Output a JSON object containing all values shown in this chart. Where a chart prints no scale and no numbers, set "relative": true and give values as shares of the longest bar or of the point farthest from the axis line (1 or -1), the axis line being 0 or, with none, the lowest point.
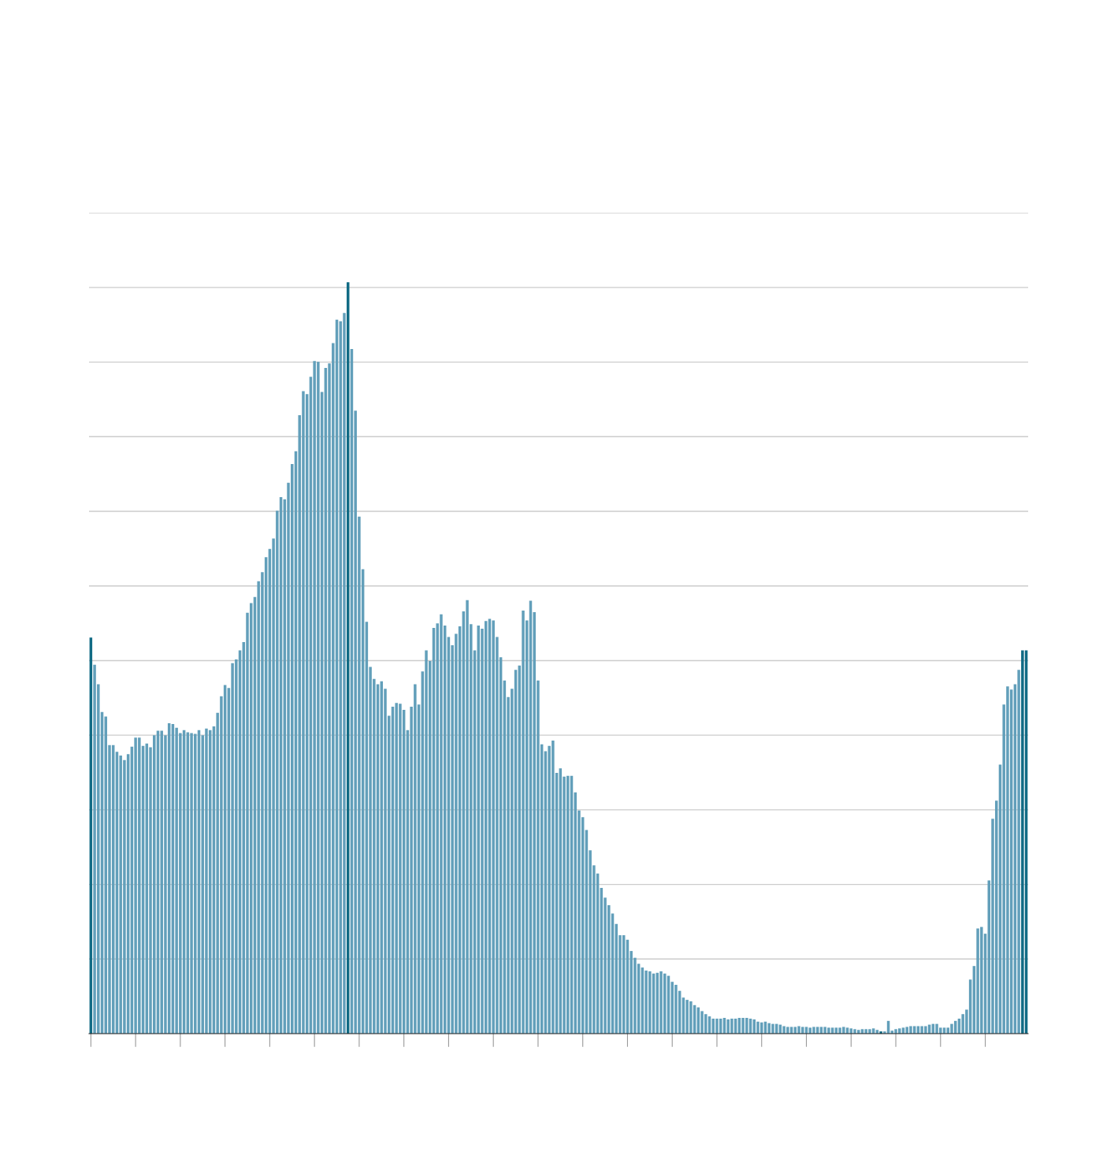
{
  "chart_data": {
    "type": "bar",
    "relative": true,
    "grid": "y",
    "categories": [
      null,
      null,
      null,
      null,
      null,
      null,
      null,
      null,
      null,
      null,
      null,
      null,
      null,
      null,
      null,
      null,
      null,
      null,
      null,
      null,
      null,
      null,
      null,
      null,
      null,
      null,
      null,
      null,
      null,
      null,
      null,
      null,
      null,
      null,
      null,
      null,
      null,
      null,
      null,
      null,
      null,
      null,
      null,
      null,
      null,
      null,
      null,
      null,
      null,
      null,
      null,
      null,
      null,
      null,
      null,
      null,
      null,
      null,
      null,
      null,
      null,
      null,
      null,
      null,
      null,
      null,
      null,
      null,
      null,
      null,
      null,
      null,
      null,
      null,
      null,
      null,
      null,
      null,
      null,
      null,
      null,
      null,
      null,
      null,
      null,
      null,
      null,
      null,
      null,
      null,
      null,
      null,
      null,
      null,
      null,
      null,
      null,
      null,
      null,
      null,
      null,
      null,
      null,
      null,
      null,
      null,
      null,
      null,
      null,
      null,
      null,
      null,
      null,
      null,
      null,
      null,
      null,
      null,
      null,
      null,
      null,
      null,
      null,
      null,
      null,
      null,
      null,
      null,
      null,
      null,
      null,
      null,
      null,
      null,
      null,
      null,
      null,
      null,
      null,
      null,
      null,
      null,
      null,
      null,
      null,
      null,
      null,
      null,
      null,
      null,
      null,
      null,
      null,
      null,
      null,
      null,
      null,
      null,
      null,
      null,
      null,
      null,
      null,
      null,
      null,
      null,
      null,
      null,
      null,
      null,
      null,
      null,
      null,
      null,
      null,
      null,
      null,
      null,
      null,
      null,
      null,
      null,
      null,
      null,
      null,
      null,
      null,
      null,
      null,
      null,
      null,
      null,
      null,
      null,
      null,
      null,
      null,
      null,
      null,
      null,
      null,
      null,
      null,
      null,
      null,
      null,
      null,
      null,
      null,
      null,
      null,
      null,
      null,
      null,
      null,
      null,
      null,
      null,
      null,
      null,
      null,
      null,
      null,
      null,
      null,
      null,
      null,
      null,
      null,
      null,
      null,
      null,
      null,
      null,
      null,
      null,
      null,
      null,
      null,
      null,
      null,
      null,
      null,
      null,
      null,
      null,
      null,
      null,
      null,
      null,
      null,
      null
    ],
    "values": [
      0.527,
      0.491,
      0.465,
      0.428,
      0.422,
      0.384,
      0.384,
      0.375,
      0.37,
      0.364,
      0.372,
      0.382,
      0.394,
      0.394,
      0.383,
      0.386,
      0.381,
      0.397,
      0.403,
      0.403,
      0.397,
      0.413,
      0.412,
      0.407,
      0.4,
      0.404,
      0.401,
      0.4,
      0.399,
      0.404,
      0.397,
      0.406,
      0.404,
      0.409,
      0.427,
      0.449,
      0.464,
      0.46,
      0.493,
      0.498,
      0.51,
      0.521,
      0.56,
      0.573,
      0.581,
      0.602,
      0.614,
      0.634,
      0.645,
      0.659,
      0.696,
      0.714,
      0.711,
      0.733,
      0.758,
      0.775,
      0.823,
      0.855,
      0.851,
      0.874,
      0.895,
      0.894,
      0.854,
      0.886,
      0.892,
      0.919,
      0.95,
      0.948,
      0.959,
      1,
      0.911,
      0.829,
      0.688,
      0.618,
      0.548,
      0.488,
      0.472,
      0.465,
      0.469,
      0.459,
      0.423,
      0.435,
      0.44,
      0.439,
      0.431,
      0.404,
      0.435,
      0.465,
      0.438,
      0.482,
      0.51,
      0.496,
      0.54,
      0.546,
      0.558,
      0.543,
      0.528,
      0.517,
      0.532,
      0.542,
      0.562,
      0.577,
      0.545,
      0.51,
      0.543,
      0.539,
      0.549,
      0.552,
      0.55,
      0.528,
      0.501,
      0.47,
      0.448,
      0.459,
      0.484,
      0.49,
      0.563,
      0.55,
      0.576,
      0.561,
      0.47,
      0.385,
      0.376,
      0.383,
      0.39,
      0.347,
      0.353,
      0.342,
      0.343,
      0.343,
      0.321,
      0.297,
      0.288,
      0.271,
      0.244,
      0.224,
      0.213,
      0.194,
      0.181,
      0.171,
      0.16,
      0.146,
      0.131,
      0.131,
      0.125,
      0.11,
      0.101,
      0.093,
      0.088,
      0.084,
      0.083,
      0.08,
      0.081,
      0.083,
      0.08,
      0.077,
      0.069,
      0.065,
      0.057,
      0.048,
      0.045,
      0.043,
      0.038,
      0.035,
      0.03,
      0.026,
      0.023,
      0.02,
      0.02,
      0.02,
      0.021,
      0.019,
      0.02,
      0.02,
      0.021,
      0.021,
      0.021,
      0.02,
      0.019,
      0.016,
      0.015,
      0.016,
      0.014,
      0.013,
      0.013,
      0.012,
      0.01,
      0.009,
      0.009,
      0.009,
      0.01,
      0.009,
      0.009,
      0.008,
      0.009,
      0.009,
      0.009,
      0.009,
      0.008,
      0.008,
      0.008,
      0.008,
      0.009,
      0.008,
      0.007,
      0.006,
      0.005,
      0.006,
      0.006,
      0.006,
      0.007,
      0.005,
      0.003,
      0.003,
      0.017,
      0.004,
      0.006,
      0.007,
      0.008,
      0.009,
      0.01,
      0.01,
      0.01,
      0.01,
      0.01,
      0.012,
      0.013,
      0.013,
      0.008,
      0.008,
      0.008,
      0.013,
      0.017,
      0.02,
      0.026,
      0.032,
      0.072,
      0.09,
      0.14,
      0.142,
      0.133,
      0.204,
      0.286,
      0.31,
      0.358,
      0.438,
      0.462,
      0.458,
      0.465,
      0.484,
      0.51,
      0.51
    ],
    "colors": [
      "#116b85",
      "#629fba",
      "#629fba",
      "#629fba",
      "#629fba",
      "#629fba",
      "#629fba",
      "#629fba",
      "#629fba",
      "#629fba",
      "#629fba",
      "#629fba",
      "#629fba",
      "#629fba",
      "#629fba",
      "#629fba",
      "#629fba",
      "#629fba",
      "#629fba",
      "#629fba",
      "#629fba",
      "#629fba",
      "#629fba",
      "#629fba",
      "#629fba",
      "#629fba",
      "#629fba",
      "#629fba",
      "#629fba",
      "#629fba",
      "#629fba",
      "#629fba",
      "#629fba",
      "#629fba",
      "#629fba",
      "#629fba",
      "#629fba",
      "#629fba",
      "#629fba",
      "#629fba",
      "#629fba",
      "#629fba",
      "#629fba",
      "#629fba",
      "#629fba",
      "#629fba",
      "#629fba",
      "#629fba",
      "#629fba",
      "#629fba",
      "#629fba",
      "#629fba",
      "#629fba",
      "#629fba",
      "#629fba",
      "#629fba",
      "#629fba",
      "#629fba",
      "#629fba",
      "#629fba",
      "#629fba",
      "#629fba",
      "#629fba",
      "#629fba",
      "#629fba",
      "#629fba",
      "#629fba",
      "#629fba",
      "#629fba",
      "#116b85",
      "#629fba",
      "#629fba",
      "#629fba",
      "#629fba",
      "#629fba",
      "#629fba",
      "#629fba",
      "#629fba",
      "#629fba",
      "#629fba",
      "#629fba",
      "#629fba",
      "#629fba",
      "#629fba",
      "#629fba",
      "#629fba",
      "#629fba",
      "#629fba",
      "#629fba",
      "#629fba",
      "#629fba",
      "#629fba",
      "#629fba",
      "#629fba",
      "#629fba",
      "#629fba",
      "#629fba",
      "#629fba",
      "#629fba",
      "#629fba",
      "#629fba",
      "#629fba",
      "#629fba",
      "#629fba",
      "#629fba",
      "#629fba",
      "#629fba",
      "#629fba",
      "#629fba",
      "#629fba",
      "#629fba",
      "#629fba",
      "#629fba",
      "#629fba",
      "#629fba",
      "#629fba",
      "#629fba",
      "#629fba",
      "#629fba",
      "#629fba",
      "#629fba",
      "#629fba",
      "#629fba",
      "#629fba",
      "#629fba",
      "#629fba",
      "#629fba",
      "#629fba",
      "#629fba",
      "#629fba",
      "#629fba",
      "#629fba",
      "#629fba",
      "#629fba",
      "#629fba",
      "#629fba",
      "#629fba",
      "#629fba",
      "#629fba",
      "#629fba",
      "#629fba",
      "#629fba",
      "#629fba",
      "#629fba",
      "#629fba",
      "#629fba",
      "#629fba",
      "#629fba",
      "#629fba",
      "#629fba",
      "#629fba",
      "#629fba",
      "#629fba",
      "#629fba",
      "#629fba",
      "#629fba",
      "#629fba",
      "#629fba",
      "#629fba",
      "#629fba",
      "#629fba",
      "#629fba",
      "#629fba",
      "#629fba",
      "#629fba",
      "#629fba",
      "#629fba",
      "#629fba",
      "#629fba",
      "#629fba",
      "#629fba",
      "#629fba",
      "#629fba",
      "#629fba",
      "#629fba",
      "#629fba",
      "#629fba",
      "#629fba",
      "#629fba",
      "#629fba",
      "#629fba",
      "#629fba",
      "#629fba",
      "#629fba",
      "#629fba",
      "#629fba",
      "#629fba",
      "#629fba",
      "#629fba",
      "#629fba",
      "#629fba",
      "#629fba",
      "#629fba",
      "#629fba",
      "#629fba",
      "#629fba",
      "#629fba",
      "#629fba",
      "#629fba",
      "#629fba",
      "#629fba",
      "#629fba",
      "#629fba",
      "#629fba",
      "#629fba",
      "#629fba",
      "#629fba",
      "#629fba",
      "#629fba",
      "#629fba",
      "#629fba",
      "#629fba",
      "#116b85",
      "#629fba",
      "#629fba",
      "#629fba",
      "#629fba",
      "#629fba",
      "#629fba",
      "#629fba",
      "#629fba",
      "#629fba",
      "#629fba",
      "#629fba",
      "#629fba",
      "#629fba",
      "#629fba",
      "#629fba",
      "#629fba",
      "#629fba",
      "#629fba",
      "#629fba",
      "#629fba",
      "#629fba",
      "#629fba",
      "#629fba",
      "#629fba",
      "#629fba",
      "#629fba",
      "#629fba",
      "#629fba",
      "#629fba",
      "#629fba",
      "#629fba",
      "#629fba",
      "#629fba",
      "#629fba",
      "#629fba",
      "#629fba",
      "#629fba",
      "#116b85",
      "#116b85"
    ]
  }
}
